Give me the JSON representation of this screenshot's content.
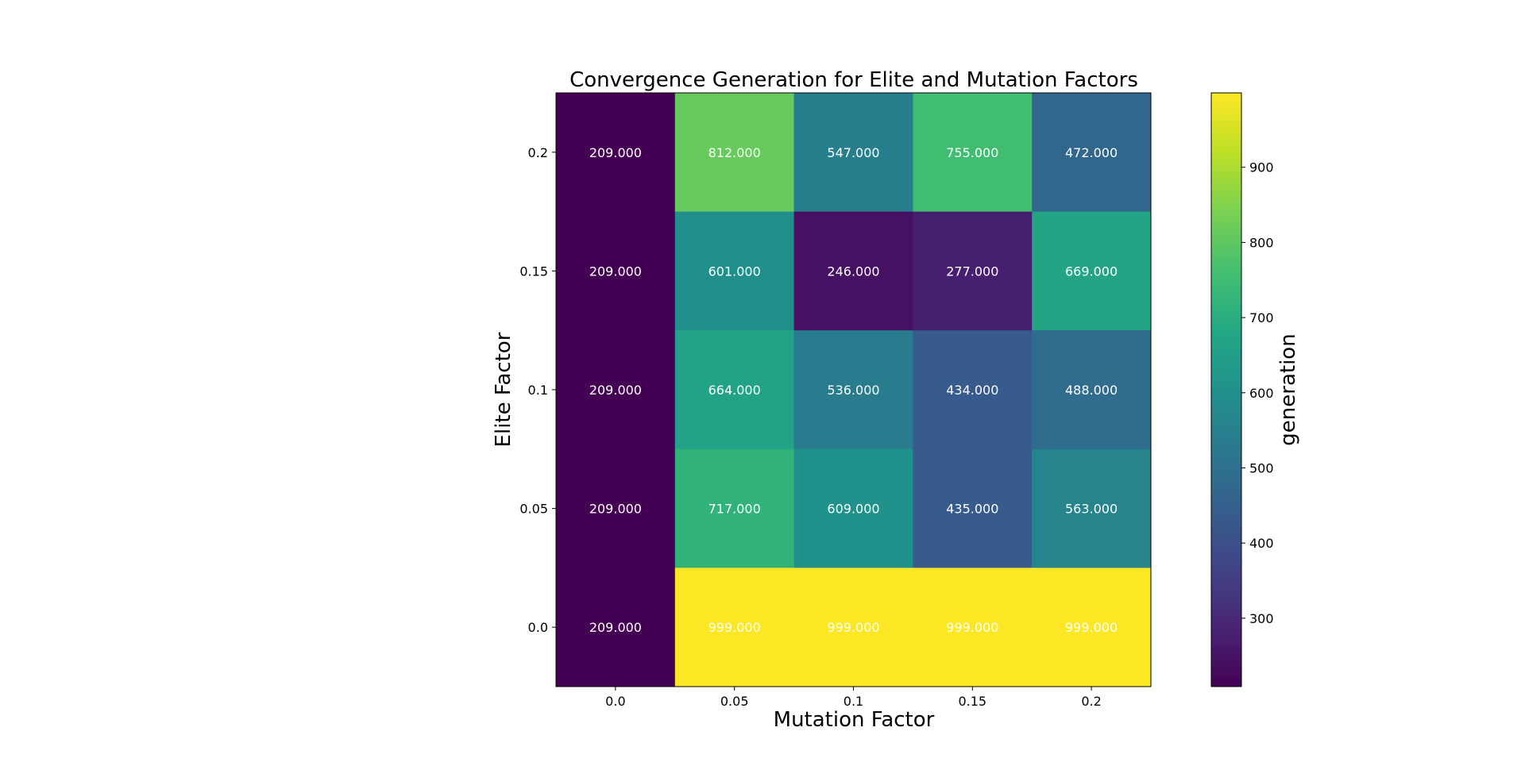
{
  "chart_data": {
    "type": "heatmap",
    "title": "Convergence Generation for Elite and Mutation Factors",
    "xlabel": "Mutation Factor",
    "ylabel": "Elite Factor",
    "x_categories": [
      "0.0",
      "0.05",
      "0.1",
      "0.15",
      "0.2"
    ],
    "y_categories": [
      "0.2",
      "0.15",
      "0.1",
      "0.05",
      "0.0"
    ],
    "values": [
      [
        209,
        812,
        547,
        755,
        472
      ],
      [
        209,
        601,
        246,
        277,
        669
      ],
      [
        209,
        664,
        536,
        434,
        488
      ],
      [
        209,
        717,
        609,
        435,
        563
      ],
      [
        209,
        999,
        999,
        999,
        999
      ]
    ],
    "value_format": "3 decimals",
    "colormap": "viridis",
    "color_range": [
      209,
      999
    ],
    "colorbar": {
      "label": "generation",
      "ticks": [
        300,
        400,
        500,
        600,
        700,
        800,
        900
      ]
    }
  }
}
